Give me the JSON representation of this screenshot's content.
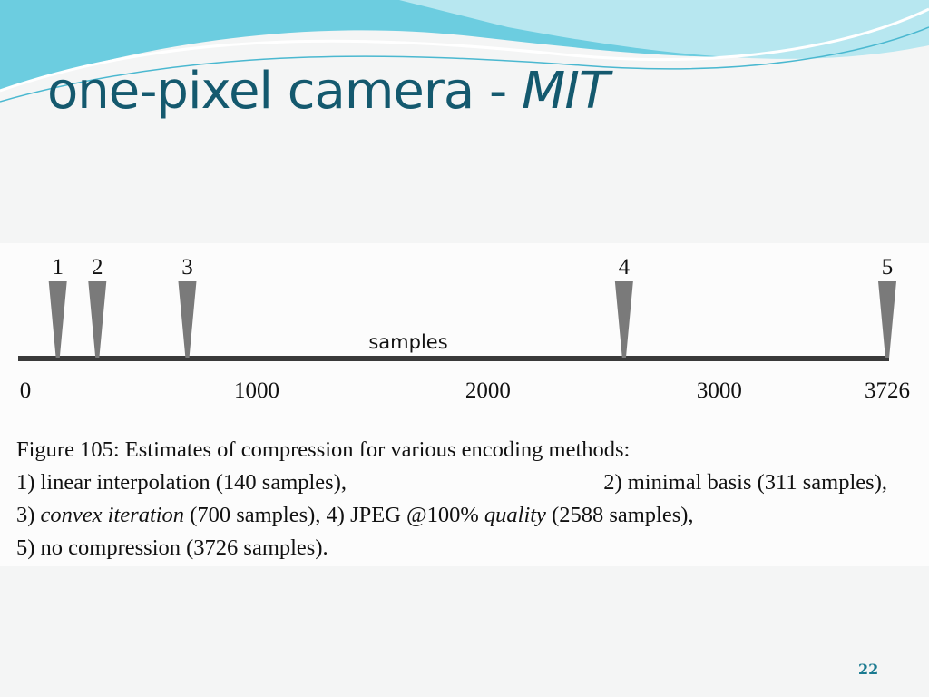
{
  "slide": {
    "title": "one-pixel camera -",
    "title_emphasis": "MIT",
    "page_number": "22"
  },
  "figure": {
    "axis_label": "samples",
    "xlim": [
      0,
      3726
    ],
    "xticks": [
      0,
      1000,
      2000,
      3000,
      3726
    ],
    "markers": [
      {
        "label": "1",
        "value": 140
      },
      {
        "label": "2",
        "value": 311
      },
      {
        "label": "3",
        "value": 700
      },
      {
        "label": "4",
        "value": 2588
      },
      {
        "label": "5",
        "value": 3726
      }
    ],
    "caption": [
      [
        "Figure 105: Estimates of compression for various encoding methods:"
      ],
      [
        "1) linear interpolation (140 samples),",
        "2) minimal basis (311 samples),"
      ],
      [
        "3) ",
        {
          "text": "convex iteration",
          "italic": true
        },
        " (700 samples), 4) JPEG @100% ",
        {
          "text": "quality",
          "italic": true
        },
        " (2588 samples),"
      ],
      [
        "5) no compression (3726 samples)."
      ]
    ]
  }
}
